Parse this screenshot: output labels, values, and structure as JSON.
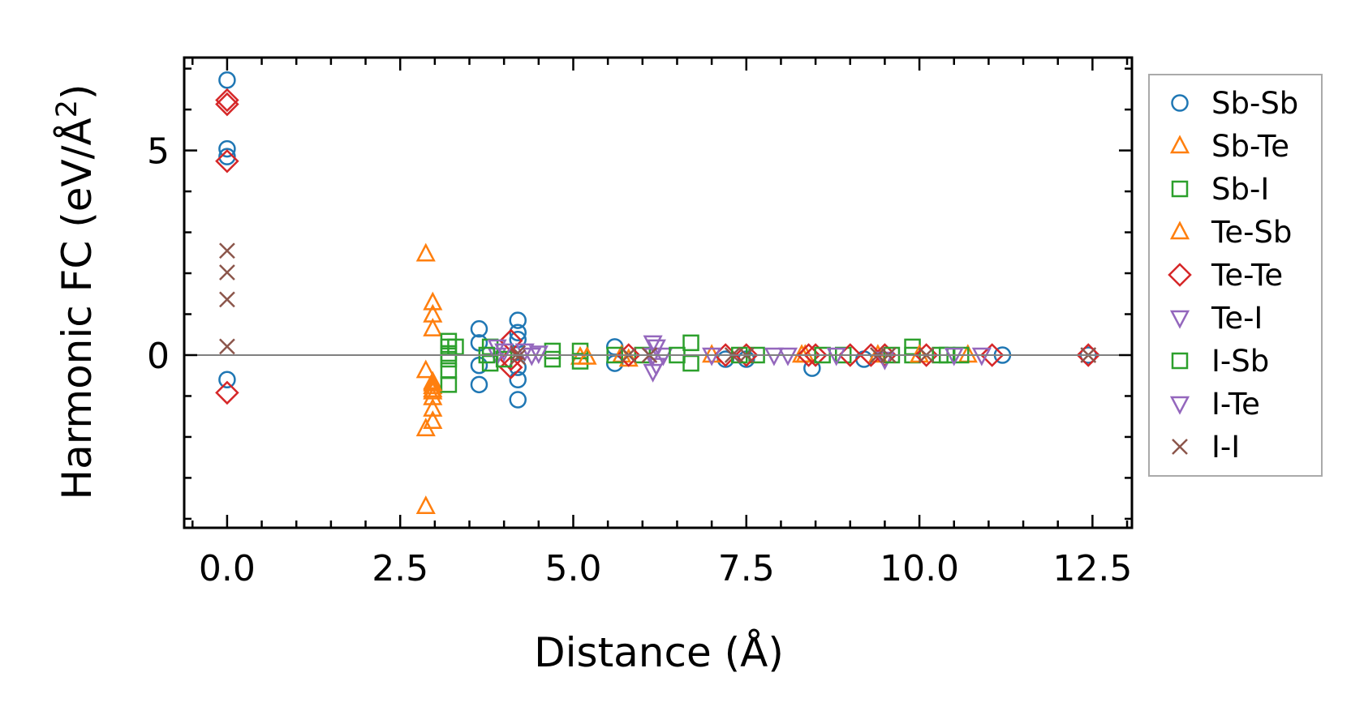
{
  "chart_data": {
    "type": "scatter",
    "title": "",
    "xlabel": "Distance (Å)",
    "ylabel": "Harmonic FC (eV/Å²)",
    "ylabel_parts": {
      "main": "Harmonic FC (eV/Å",
      "sup": "2",
      "close": ")"
    },
    "xlim": [
      -0.62,
      13.07
    ],
    "ylim": [
      -4.22,
      7.27
    ],
    "xticks": [
      0.0,
      2.5,
      5.0,
      7.5,
      10.0,
      12.5
    ],
    "xtick_labels": [
      "0.0",
      "2.5",
      "5.0",
      "7.5",
      "10.0",
      "12.5"
    ],
    "yticks": [
      0,
      5
    ],
    "ytick_labels": [
      "0",
      "5"
    ],
    "reference_line_y": 0,
    "grid": false,
    "legend_position": "outside-right",
    "series": [
      {
        "name": "Sb-Sb",
        "marker": "circle",
        "color": "#1f77b4",
        "x": [
          0,
          0,
          0,
          0,
          3.64,
          3.64,
          3.64,
          3.64,
          4.2,
          4.2,
          4.2,
          4.2,
          4.2,
          4.2,
          5.6,
          5.6,
          7.2,
          7.5,
          8.45,
          9.2,
          11.2,
          12.44
        ],
        "y": [
          6.72,
          5.04,
          4.85,
          -0.6,
          0.64,
          0.3,
          -0.25,
          -0.72,
          0.85,
          0.55,
          0.38,
          -0.3,
          -0.6,
          -1.09,
          0.2,
          -0.2,
          -0.1,
          -0.1,
          -0.32,
          -0.1,
          0,
          0
        ]
      },
      {
        "name": "Sb-Te",
        "marker": "triangle-up",
        "color": "#ff7f0e",
        "x": [
          2.87,
          2.87,
          2.87,
          2.87,
          2.97,
          2.97,
          2.97,
          2.97,
          2.97,
          2.97,
          2.97,
          2.97,
          2.97,
          5.1,
          5.7,
          8.3,
          10.7
        ],
        "y": [
          2.47,
          -0.38,
          -1.8,
          -3.7,
          1.28,
          0.98,
          0.64,
          -0.66,
          -0.77,
          -0.9,
          -1.04,
          -1.32,
          -1.62,
          -0.05,
          0,
          0,
          0
        ]
      },
      {
        "name": "Sb-I",
        "marker": "square",
        "color": "#2ca02c",
        "x": [
          3.2,
          3.2,
          3.2,
          3.2,
          3.2,
          3.2,
          3.8,
          3.8,
          4.7,
          4.7,
          5.1,
          5.1,
          6.0,
          6.7,
          6.7,
          7.65,
          8.9,
          9.9,
          9.9,
          10.4,
          10.6
        ],
        "y": [
          0.34,
          0.2,
          0.04,
          -0.1,
          -0.38,
          -0.72,
          0.2,
          -0.2,
          0.1,
          -0.1,
          0.1,
          -0.15,
          0,
          0.3,
          -0.2,
          0,
          0,
          0.2,
          0,
          0,
          0
        ]
      },
      {
        "name": "Te-Sb",
        "marker": "triangle-up",
        "color": "#ff7f0e",
        "x": [
          2.97,
          2.97,
          5.2,
          5.8,
          7.0,
          8.35,
          9.4,
          10.0
        ],
        "y": [
          -0.7,
          -0.85,
          -0.05,
          -0.1,
          0,
          0,
          0,
          0
        ]
      },
      {
        "name": "Te-Te",
        "marker": "diamond",
        "color": "#d62728",
        "x": [
          0,
          0,
          0,
          0,
          4.1,
          4.1,
          4.1,
          5.8,
          7.2,
          7.5,
          8.4,
          8.5,
          9.0,
          9.3,
          9.5,
          10.1,
          11.05,
          12.44
        ],
        "y": [
          6.23,
          6.13,
          4.74,
          -0.92,
          0.35,
          -0.1,
          -0.3,
          0,
          0,
          0,
          0,
          0,
          0,
          0,
          0,
          0,
          0,
          0
        ]
      },
      {
        "name": "Te-I",
        "marker": "triangle-down",
        "color": "#9467bd",
        "x": [
          3.9,
          3.9,
          4.3,
          4.5,
          6.15,
          6.15,
          6.15,
          6.3,
          7.9,
          8.1,
          9.5,
          10.9
        ],
        "y": [
          0.2,
          0,
          0.1,
          0.05,
          0.3,
          0,
          -0.4,
          0,
          0,
          0,
          -0.1,
          0
        ]
      },
      {
        "name": "I-Sb",
        "marker": "square",
        "color": "#2ca02c",
        "x": [
          3.3,
          3.75,
          4.0,
          5.6,
          6.5,
          7.4,
          8.6,
          9.6,
          10.3
        ],
        "y": [
          0.2,
          0,
          -0.1,
          0,
          0,
          0,
          0,
          0,
          0
        ]
      },
      {
        "name": "I-Te",
        "marker": "triangle-down",
        "color": "#9467bd",
        "x": [
          4.0,
          4.4,
          6.2,
          6.2,
          7.0,
          8.8,
          10.5
        ],
        "y": [
          0.1,
          0,
          0.2,
          -0.25,
          0,
          0,
          0
        ]
      },
      {
        "name": "I-I",
        "marker": "x",
        "color": "#8c564b",
        "x": [
          0,
          0,
          0,
          0,
          4.2,
          4.2,
          5.8,
          6.1,
          7.3,
          7.5,
          9.4,
          9.55,
          10.1,
          12.44
        ],
        "y": [
          2.55,
          2.02,
          1.36,
          0.21,
          0.05,
          -0.05,
          0,
          0,
          0,
          0,
          0,
          0,
          0,
          0
        ]
      }
    ]
  }
}
